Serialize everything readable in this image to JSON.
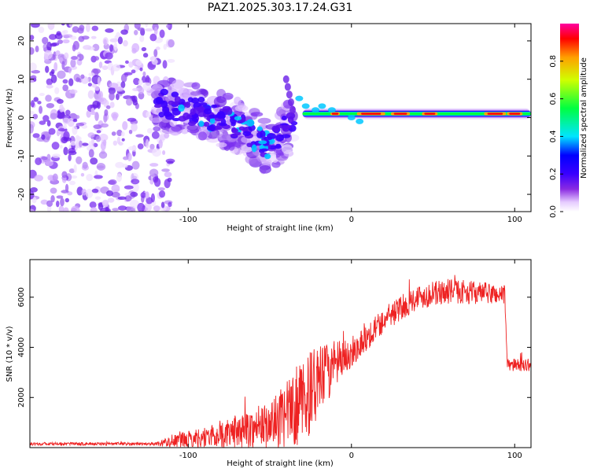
{
  "chart_data": [
    {
      "type": "heatmap",
      "title": "PAZ1.2025.303.17.24.G31",
      "xlabel": "Height of straight line (km)",
      "ylabel": "Frequency (Hz)",
      "xlim": [
        -197,
        110
      ],
      "ylim": [
        -24.5,
        24.5
      ],
      "xticks": [
        -100,
        0,
        100
      ],
      "yticks": [
        -20,
        -10,
        0,
        10,
        20
      ],
      "colorbar": {
        "label": "Normalized spectral amplitude",
        "range": [
          0.0,
          1.0
        ],
        "ticks": [
          "0.0",
          "0.2",
          "0.4",
          "0.6",
          "0.8"
        ],
        "tick_values": [
          0.0,
          0.2,
          0.4,
          0.6,
          0.8
        ],
        "colors": [
          "#ffffff",
          "#e6ccff",
          "#8a2be2",
          "#3a00ff",
          "#0000ff",
          "#00e5ff",
          "#00ff40",
          "#d0ff00",
          "#ffa000",
          "#ff0000",
          "#ff00a0"
        ]
      },
      "features": {
        "noise_region_km": [
          -197,
          -115
        ],
        "turbulent_region_km": [
          -120,
          -35
        ],
        "turbulent_trend_hz": [
          {
            "x": -120,
            "y": 4
          },
          {
            "x": -90,
            "y": 1
          },
          {
            "x": -70,
            "y": -2
          },
          {
            "x": -50,
            "y": -8
          },
          {
            "x": -40,
            "y": -3
          }
        ],
        "stable_line_hz": 1.0,
        "stable_line_km": [
          -30,
          110
        ]
      }
    },
    {
      "type": "line",
      "xlabel": "Height of straight line (km)",
      "ylabel": "SNR (10 * v/v)",
      "xlim": [
        -197,
        110
      ],
      "ylim": [
        0,
        7500
      ],
      "xticks": [
        -100,
        0,
        100
      ],
      "yticks": [
        2000,
        4000,
        6000
      ],
      "line_color": "#ee2222",
      "envelope": [
        {
          "x": -197,
          "mean": 150,
          "noise": 60
        },
        {
          "x": -120,
          "mean": 150,
          "noise": 60
        },
        {
          "x": -110,
          "mean": 250,
          "noise": 250
        },
        {
          "x": -80,
          "mean": 500,
          "noise": 500
        },
        {
          "x": -50,
          "mean": 900,
          "noise": 900
        },
        {
          "x": -35,
          "mean": 1500,
          "noise": 1500
        },
        {
          "x": -25,
          "mean": 2200,
          "noise": 1700
        },
        {
          "x": -15,
          "mean": 3000,
          "noise": 1200
        },
        {
          "x": 0,
          "mean": 3800,
          "noise": 600
        },
        {
          "x": 20,
          "mean": 5100,
          "noise": 500
        },
        {
          "x": 40,
          "mean": 6000,
          "noise": 500
        },
        {
          "x": 60,
          "mean": 6250,
          "noise": 500
        },
        {
          "x": 94,
          "mean": 6100,
          "noise": 400
        },
        {
          "x": 95.5,
          "mean": 3300,
          "noise": 250
        },
        {
          "x": 110,
          "mean": 3300,
          "noise": 250
        }
      ]
    }
  ]
}
